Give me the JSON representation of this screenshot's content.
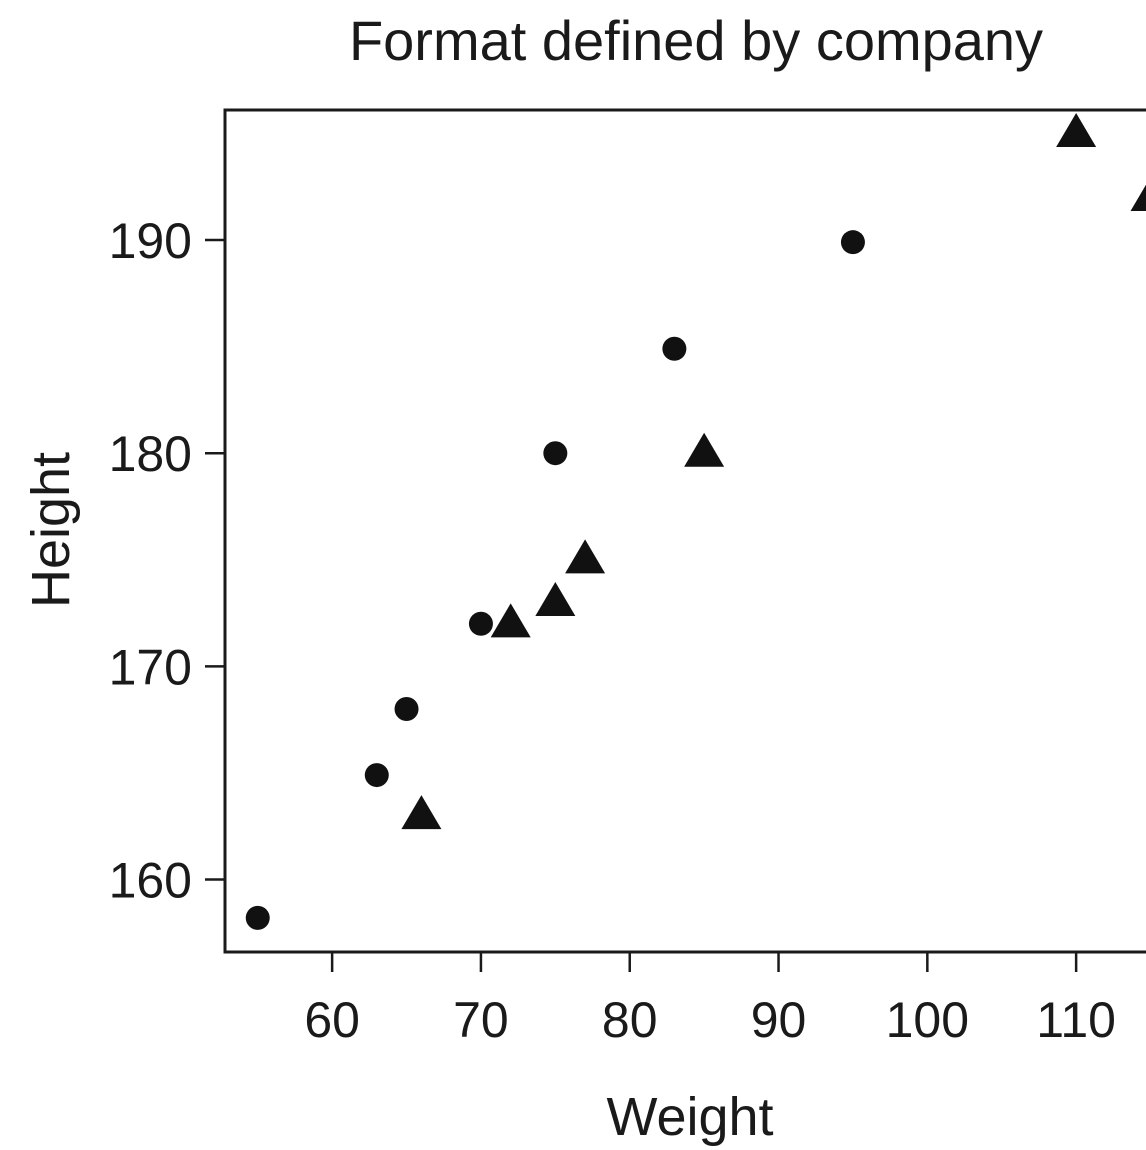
{
  "chart_data": {
    "type": "scatter",
    "title": "Format defined by company",
    "xlabel": "Weight",
    "ylabel": "Height",
    "xlim": [
      52.8,
      115.3
    ],
    "ylim": [
      156.6,
      196.1
    ],
    "xticks": [
      60,
      70,
      80,
      90,
      100,
      110
    ],
    "yticks": [
      160,
      170,
      180,
      190
    ],
    "grid": false,
    "legend": "none",
    "marker_color": "#111111",
    "series": [
      {
        "marker": "circle",
        "points": [
          {
            "x": 55,
            "y": 158.2
          },
          {
            "x": 63,
            "y": 164.9
          },
          {
            "x": 65,
            "y": 168
          },
          {
            "x": 70,
            "y": 172
          },
          {
            "x": 75,
            "y": 180
          },
          {
            "x": 83,
            "y": 184.9
          },
          {
            "x": 95,
            "y": 189.9
          }
        ]
      },
      {
        "marker": "triangle",
        "points": [
          {
            "x": 66,
            "y": 163
          },
          {
            "x": 72,
            "y": 172
          },
          {
            "x": 75,
            "y": 173
          },
          {
            "x": 77,
            "y": 175
          },
          {
            "x": 85,
            "y": 180
          },
          {
            "x": 110,
            "y": 195
          },
          {
            "x": 115,
            "y": 192
          }
        ]
      }
    ]
  }
}
